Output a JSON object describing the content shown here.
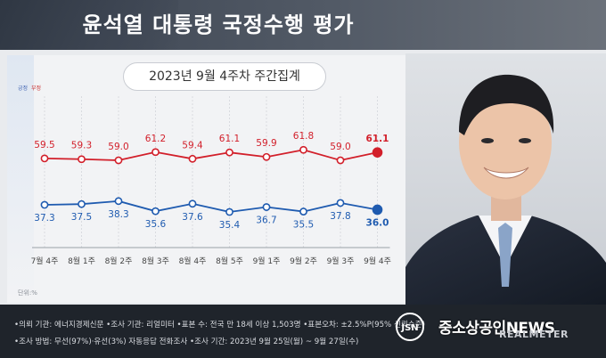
{
  "header": {
    "title": "윤석열 대통령 국정수행 평가"
  },
  "subtitle": "2023년 9월 4주차 주간집계",
  "legend": {
    "positive": "긍정",
    "negative": "부정"
  },
  "unit": "단위:%",
  "colors": {
    "positive": "#1f5bb0",
    "negative": "#d21f2a",
    "grid": "#c9ccd2"
  },
  "chart_data": {
    "type": "line",
    "categories": [
      "7월 4주",
      "8월 1주",
      "8월 2주",
      "8월 3주",
      "8월 4주",
      "8월 5주",
      "9월 1주",
      "9월 2주",
      "9월 3주",
      "9월 4주"
    ],
    "series": [
      {
        "name": "부정",
        "values": [
          59.5,
          59.3,
          59.0,
          61.2,
          59.4,
          61.1,
          59.9,
          61.8,
          59.0,
          61.1
        ]
      },
      {
        "name": "긍정",
        "values": [
          37.3,
          37.5,
          38.3,
          35.6,
          37.6,
          35.4,
          36.7,
          35.5,
          37.8,
          36.0
        ]
      }
    ],
    "title": "윤석열 대통령 국정수행 평가",
    "grid": true
  },
  "footer": {
    "line1": "•의뢰 기관: 에너지경제신문  •조사 기관: 리얼미터  •표본 수: 전국 만 18세 이상 1,503명  •표본오차: ±2.5%P(95% 신뢰수준)",
    "line2": "•조사 방법: 무선(97%)·유선(3%) 자동응답 전화조사  •조사 기간: 2023년 9월 25일(월) ~ 9월 27일(수)"
  },
  "logos": {
    "newsis": "중소상공인NEWS",
    "jsn": "JSN",
    "realmeter": "REALMETER"
  }
}
